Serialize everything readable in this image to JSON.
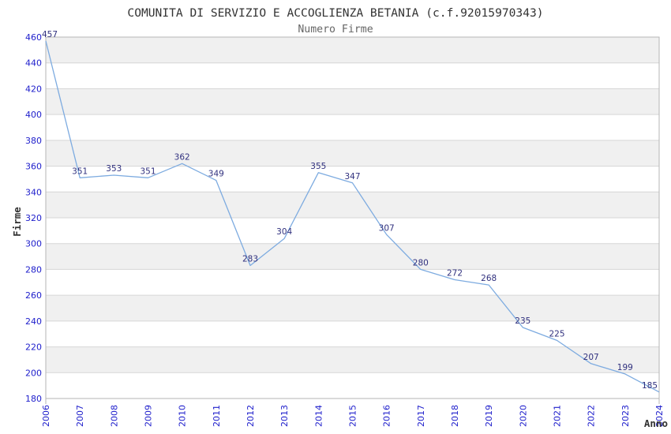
{
  "chart_data": {
    "type": "line",
    "title": "COMUNITA DI SERVIZIO E ACCOGLIENZA BETANIA (c.f.92015970343)",
    "subtitle": "Numero Firme",
    "xlabel": "Anno",
    "ylabel": "Firme",
    "categories": [
      "2006",
      "2007",
      "2008",
      "2009",
      "2010",
      "2011",
      "2012",
      "2013",
      "2014",
      "2015",
      "2016",
      "2017",
      "2018",
      "2019",
      "2020",
      "2021",
      "2022",
      "2023",
      "2024"
    ],
    "series": [
      {
        "name": "Numero Firme",
        "values": [
          457,
          351,
          353,
          351,
          362,
          349,
          283,
          304,
          355,
          347,
          307,
          280,
          272,
          268,
          235,
          225,
          207,
          199,
          185
        ]
      }
    ],
    "ylim": [
      180,
      460
    ],
    "ytick_step": 20,
    "grid": true,
    "alternating_bands": true,
    "legend_position": "none",
    "markers": "none",
    "colors": {
      "line": "#7dabe0",
      "data_label": "#30307e",
      "tick_label": "#2020cc",
      "title": "#333333",
      "subtitle": "#666666",
      "axis_title": "#333333",
      "band": "#f0f0f0",
      "band_alt": "#ffffff",
      "grid": "#d6d6d6",
      "plot_border": "#b6b6b6",
      "background": "#ffffff"
    }
  }
}
